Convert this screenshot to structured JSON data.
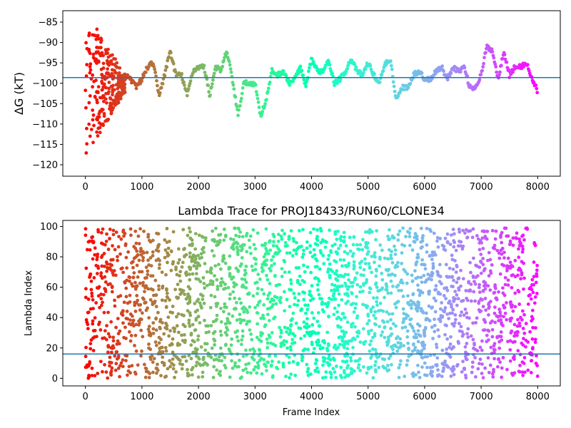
{
  "chart_data": [
    {
      "type": "scatter",
      "title": "",
      "xlabel": "",
      "ylabel": "ΔG (kT)",
      "xlim": [
        -400,
        8400
      ],
      "ylim": [
        -122.8,
        -82.2
      ],
      "xticks": [
        0,
        1000,
        2000,
        3000,
        4000,
        5000,
        6000,
        7000,
        8000
      ],
      "yticks": [
        -120,
        -115,
        -110,
        -105,
        -100,
        -95,
        -90,
        -85
      ],
      "hline": {
        "y": -98.6,
        "color": "#1f77b4"
      },
      "colormap": "rainbow (red at frame 0 → purple at frame 8000)",
      "grid": false,
      "series": [
        {
          "x": [
            0,
            100,
            200,
            300,
            400,
            500,
            600,
            700,
            800,
            900,
            1000,
            1100,
            1200,
            1300,
            1400,
            1500,
            1600,
            1700,
            1800,
            1900,
            2000,
            2100,
            2200,
            2300,
            2400,
            2500,
            2600,
            2700,
            2800,
            2900,
            3000,
            3100,
            3200,
            3300,
            3400,
            3500,
            3600,
            3700,
            3800,
            3900,
            4000,
            4100,
            4200,
            4300,
            4400,
            4500,
            4600,
            4700,
            4800,
            4900,
            5000,
            5100,
            5200,
            5300,
            5400,
            5500,
            5600,
            5700,
            5800,
            5900,
            6000,
            6100,
            6200,
            6300,
            6400,
            6500,
            6600,
            6700,
            6800,
            6900,
            7000,
            7100,
            7200,
            7300,
            7400,
            7500,
            7600,
            7700,
            7800,
            7900,
            8000
          ],
          "y": [
            -100,
            -95,
            -105,
            -98,
            -100,
            -96,
            -100,
            -98,
            -99,
            -101,
            -99,
            -96,
            -95,
            -103,
            -98,
            -92,
            -98,
            -98,
            -103,
            -97,
            -96,
            -96,
            -103,
            -96,
            -97,
            -92,
            -99,
            -108,
            -100,
            -100,
            -100,
            -108,
            -104,
            -97,
            -98,
            -97,
            -100,
            -99,
            -96,
            -101,
            -94,
            -97,
            -97,
            -94,
            -100,
            -99,
            -97,
            -94,
            -97,
            -98,
            -95,
            -98,
            -100,
            -95,
            -95,
            -104,
            -101,
            -101,
            -98,
            -97,
            -99,
            -99,
            -97,
            -96,
            -99,
            -96,
            -97,
            -96,
            -101,
            -101,
            -98,
            -91,
            -92,
            -99,
            -92,
            -98,
            -96,
            -96,
            -95,
            -99,
            -102
          ]
        }
      ]
    },
    {
      "type": "scatter",
      "title": "Lambda Trace for PROJ18433/RUN60/CLONE34",
      "xlabel": "Frame Index",
      "ylabel": "Lambda Index",
      "xlim": [
        -400,
        8400
      ],
      "ylim": [
        -5,
        104
      ],
      "xticks": [
        0,
        1000,
        2000,
        3000,
        4000,
        5000,
        6000,
        7000,
        8000
      ],
      "yticks": [
        0,
        20,
        40,
        60,
        80,
        100
      ],
      "hline": {
        "y": 16,
        "color": "#1f77b4"
      },
      "colormap": "rainbow (red at frame 0 → purple at frame 8000)",
      "grid": false,
      "series": [
        {
          "x_range": [
            0,
            8000
          ],
          "y_range": [
            0,
            99
          ],
          "point_count": 8000
        }
      ]
    }
  ]
}
